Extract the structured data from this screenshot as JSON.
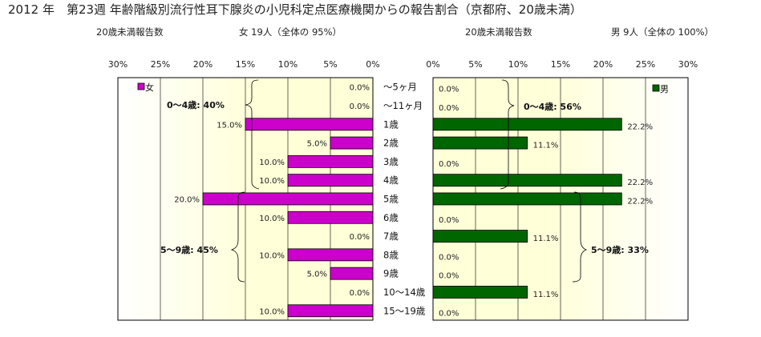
{
  "title": "2012 年　第23週 年齢階級別流行性耳下腺炎の小児科定点医療機関からの報告割合（京都府、20歳未満）",
  "left_panel": {
    "subtitle": "20歳未満報告数",
    "summary": "女 19人（全体の 95%）",
    "group1_label": "0～4歳: 40%",
    "group2_label": "5～9歳: 45%"
  },
  "right_panel": {
    "subtitle": "20歳未満報告数",
    "summary": "男 9人（全体の 100%）",
    "group1_label": "0～4歳: 56%",
    "group2_label": "5～9歳: 33%"
  },
  "colors": {
    "female": "#CC00CC",
    "male": "#006600",
    "plot_bg_center": "#FFFFD8",
    "plot_bg_edge": "#FFFFFF"
  },
  "chart_data": [
    {
      "type": "bar",
      "orientation": "horizontal-reversed",
      "categories": [
        "～5ヶ月",
        "～11ヶ月",
        "1歳",
        "2歳",
        "3歳",
        "4歳",
        "5歳",
        "6歳",
        "7歳",
        "8歳",
        "9歳",
        "10～14歳",
        "15～19歳"
      ],
      "series": [
        {
          "name": "女",
          "values": [
            0.0,
            0.0,
            15.0,
            5.0,
            10.0,
            10.0,
            20.0,
            10.0,
            0.0,
            10.0,
            5.0,
            0.0,
            10.0
          ]
        }
      ],
      "data_labels": [
        "0.0%",
        "0.0%",
        "15.0%",
        "5.0%",
        "10.0%",
        "10.0%",
        "20.0%",
        "10.0%",
        "0.0%",
        "10.0%",
        "5.0%",
        "0.0%",
        "10.0%"
      ],
      "xlim": [
        0,
        30
      ],
      "xticks": [
        "0%",
        "5%",
        "10%",
        "15%",
        "20%",
        "25%",
        "30%"
      ],
      "legend": "top-left",
      "grid": true
    },
    {
      "type": "bar",
      "orientation": "horizontal",
      "categories": [
        "～5ヶ月",
        "～11ヶ月",
        "1歳",
        "2歳",
        "3歳",
        "4歳",
        "5歳",
        "6歳",
        "7歳",
        "8歳",
        "9歳",
        "10～14歳",
        "15～19歳"
      ],
      "series": [
        {
          "name": "男",
          "values": [
            0.0,
            0.0,
            22.2,
            11.1,
            0.0,
            22.2,
            22.2,
            0.0,
            11.1,
            0.0,
            0.0,
            11.1,
            0.0
          ]
        }
      ],
      "data_labels": [
        "0.0%",
        "0.0%",
        "22.2%",
        "11.1%",
        "0.0%",
        "22.2%",
        "22.2%",
        "0.0%",
        "11.1%",
        "0.0%",
        "0.0%",
        "11.1%",
        "0.0%"
      ],
      "xlim": [
        0,
        30
      ],
      "xticks": [
        "0%",
        "5%",
        "10%",
        "15%",
        "20%",
        "25%",
        "30%"
      ],
      "legend": "top-right",
      "grid": true
    }
  ]
}
